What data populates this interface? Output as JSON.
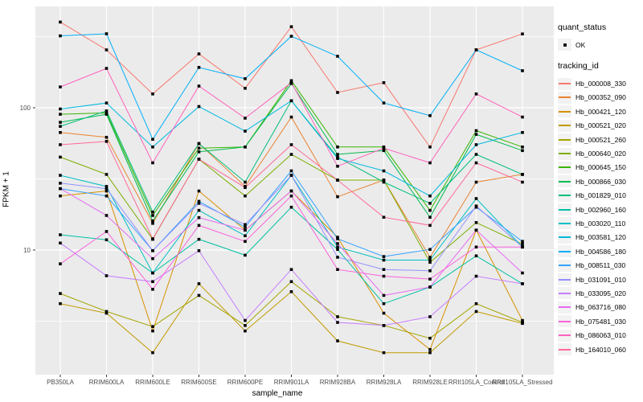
{
  "figure": {
    "xlabel": "sample_name",
    "ylabel": "FPKM + 1"
  },
  "legend": {
    "quant_status_title": "quant_status",
    "quant_status_items": [
      {
        "label": "OK",
        "marker": "black-point"
      }
    ],
    "tracking_id_title": "tracking_id"
  },
  "colors": {
    "panel_bg": "#EBEBEB",
    "gridline": "#FFFFFF",
    "point": "#000000",
    "axis_text": "#4D4D4D",
    "tick_mark": "#333333",
    "legend_key_bg": "#F2F2F2"
  },
  "chart_data": {
    "type": "line",
    "title": "",
    "xlabel": "sample_name",
    "ylabel": "FPKM + 1",
    "y_scale": "log10",
    "ylim": [
      1.3,
      515
    ],
    "y_major_ticks": [
      10,
      100
    ],
    "y_major_tick_labels": [
      "10",
      "100"
    ],
    "y_minor_gridlines": [
      3.162,
      31.62,
      316.2
    ],
    "grid": true,
    "legend_position": "right",
    "point_status_label": "OK",
    "x_categories": [
      "PB350LA",
      "RRIM600LA",
      "RRIM600LE",
      "RRIM600SE",
      "RRIM600PE",
      "RRIM901LA",
      "RRIM928BA",
      "RRIM928LA",
      "RRIM928LE",
      "RRII105LA_Control",
      "RRII105LA_Stressed"
    ],
    "series": [
      {
        "name": "Hb_000008_330",
        "color": "#F8766D",
        "values": [
          400,
          255,
          125,
          239,
          137,
          371,
          128,
          150,
          53,
          255,
          330
        ]
      },
      {
        "name": "Hb_000352_090",
        "color": "#EA8331",
        "values": [
          67,
          62,
          15.4,
          56,
          28,
          86,
          23.7,
          31,
          8.9,
          30,
          34
        ]
      },
      {
        "name": "Hb_000421_120",
        "color": "#D89000",
        "values": [
          24,
          26,
          2.7,
          26,
          13.8,
          26,
          12.3,
          3.6,
          2.0,
          13.8,
          3.2
        ]
      },
      {
        "name": "Hb_000521_020",
        "color": "#C09B00",
        "values": [
          4.2,
          3.6,
          1.9,
          5.8,
          2.7,
          5.1,
          2.3,
          1.9,
          1.9,
          3.7,
          3.05
        ]
      },
      {
        "name": "Hb_000521_260",
        "color": "#A3A500",
        "values": [
          4.95,
          3.7,
          2.9,
          4.8,
          2.95,
          6.0,
          3.4,
          2.95,
          2.4,
          4.2,
          3.1
        ]
      },
      {
        "name": "Hb_000640_020",
        "color": "#7CAE00",
        "values": [
          45,
          34,
          11.9,
          43.5,
          24,
          47,
          31,
          31,
          8.2,
          15.6,
          11
        ]
      },
      {
        "name": "Hb_000645_150",
        "color": "#39B600",
        "values": [
          90,
          92,
          17.5,
          52,
          53,
          155,
          53,
          53,
          19,
          69,
          53
        ]
      },
      {
        "name": "Hb_000866_030",
        "color": "#00BB4E",
        "values": [
          79,
          90,
          16,
          49,
          53,
          148,
          47,
          50,
          17,
          65,
          50
        ]
      },
      {
        "name": "Hb_001829_010",
        "color": "#00BF7D",
        "values": [
          74,
          95,
          18.5,
          56,
          30,
          112,
          45,
          30,
          21.3,
          47,
          34
        ]
      },
      {
        "name": "Hb_002960_160",
        "color": "#00C1A3",
        "values": [
          12.8,
          11.8,
          6.9,
          11.9,
          9.2,
          20,
          10.1,
          4.2,
          5.5,
          9.1,
          5.8
        ]
      },
      {
        "name": "Hb_003020_110",
        "color": "#00BFC4",
        "values": [
          33.5,
          28,
          6.9,
          19,
          12.6,
          33.5,
          10.5,
          8.5,
          8.5,
          23,
          10.5
        ]
      },
      {
        "name": "Hb_003581_120",
        "color": "#00BAE0",
        "values": [
          98,
          108,
          53,
          102,
          68.5,
          112,
          44,
          36,
          24,
          55,
          67
        ]
      },
      {
        "name": "Hb_004586_180",
        "color": "#00B0F6",
        "values": [
          320,
          331,
          60,
          192,
          160,
          318,
          230,
          108,
          88,
          255,
          182
        ]
      },
      {
        "name": "Hb_008511_030",
        "color": "#35A2FF",
        "values": [
          27,
          24,
          9.9,
          22,
          14.5,
          36,
          12,
          9,
          10.1,
          20,
          11.5
        ]
      },
      {
        "name": "Hb_031091_010",
        "color": "#9590FF",
        "values": [
          29.5,
          27,
          9.9,
          21.3,
          15.1,
          33.5,
          8.9,
          7.3,
          7.15,
          20.4,
          10.5
        ]
      },
      {
        "name": "Hb_033095_020",
        "color": "#C77CFF",
        "values": [
          11.2,
          6.6,
          6.0,
          9.9,
          3.2,
          7.3,
          3.1,
          2.95,
          3.4,
          6.55,
          5.8
        ]
      },
      {
        "name": "Hb_063716_080",
        "color": "#E76BF3",
        "values": [
          27,
          17.5,
          8.7,
          16.9,
          13.8,
          26,
          11.1,
          4.8,
          5.5,
          13.8,
          6.9
        ]
      },
      {
        "name": "Hb_075481_030",
        "color": "#FA62DB",
        "values": [
          8.0,
          13.5,
          5.3,
          14.9,
          11.5,
          24,
          7.3,
          6.55,
          6.25,
          10.5,
          10.5
        ]
      },
      {
        "name": "Hb_086063_010",
        "color": "#FF62BC",
        "values": [
          140,
          189,
          41,
          142,
          84.5,
          150,
          38.8,
          52,
          41,
          125,
          86
        ]
      },
      {
        "name": "Hb_164010_060",
        "color": "#FF6A98",
        "values": [
          55,
          58,
          12,
          43.5,
          27.5,
          55,
          31,
          17,
          14.9,
          41,
          30
        ]
      }
    ]
  }
}
